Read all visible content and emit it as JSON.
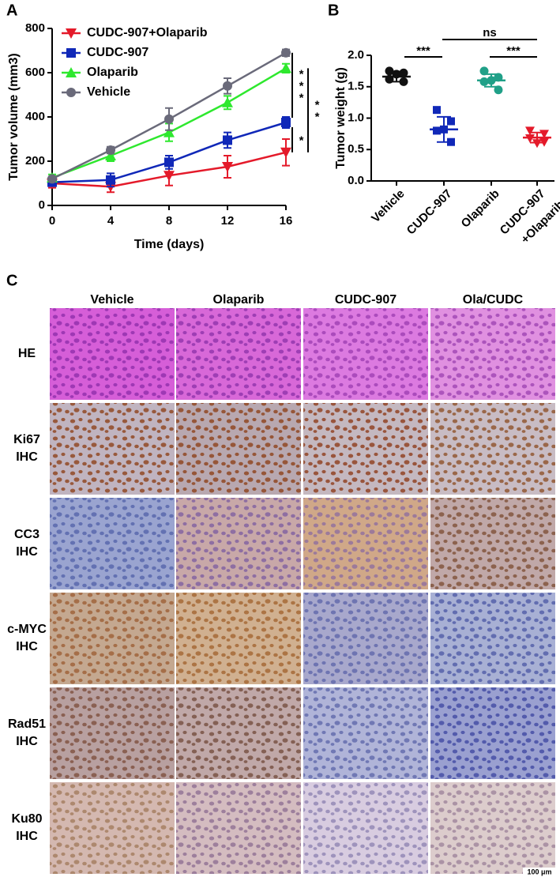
{
  "chart_data": [
    {
      "type": "line",
      "panel_label": "A",
      "xlabel": "Time (days)",
      "ylabel": "Tumor volume (mm3)",
      "x": [
        0,
        4,
        8,
        12,
        16
      ],
      "xlim": [
        0,
        16
      ],
      "xticks": [
        0,
        4,
        8,
        12,
        16
      ],
      "ylim": [
        0,
        800
      ],
      "yticks": [
        0,
        200,
        400,
        600,
        800
      ],
      "legend": "upper left",
      "series": [
        {
          "name": "CUDC-907+Olaparib",
          "color": "#e41a2a",
          "marker": "triangle-down",
          "values": [
            100,
            85,
            135,
            175,
            240
          ],
          "errors": [
            20,
            25,
            45,
            50,
            60
          ]
        },
        {
          "name": "CUDC-907",
          "color": "#1028b8",
          "marker": "square",
          "values": [
            105,
            115,
            195,
            295,
            375
          ],
          "errors": [
            15,
            30,
            30,
            35,
            25
          ]
        },
        {
          "name": "Olaparib",
          "color": "#2ee82e",
          "marker": "triangle",
          "values": [
            125,
            225,
            330,
            465,
            620
          ],
          "errors": [
            15,
            25,
            40,
            30,
            20
          ]
        },
        {
          "name": "Vehicle",
          "color": "#6a6a7a",
          "marker": "circle",
          "values": [
            120,
            250,
            390,
            540,
            690
          ],
          "errors": [
            10,
            15,
            50,
            35,
            15
          ]
        }
      ],
      "annotations": [
        "***",
        "**",
        "*"
      ]
    },
    {
      "type": "dot",
      "panel_label": "B",
      "ylabel": "Tumor weight (g)",
      "categories": [
        [
          "Vehicle"
        ],
        [
          "CUDC-907"
        ],
        [
          "Olaparib"
        ],
        [
          "CUDC-907",
          "+Olaparib"
        ]
      ],
      "colors": [
        "#111111",
        "#1028b8",
        "#20a088",
        "#e41a2a"
      ],
      "points": [
        [
          1.75,
          1.72,
          1.62,
          1.58,
          1.7
        ],
        [
          1.13,
          0.95,
          0.8,
          0.62,
          0.82
        ],
        [
          1.75,
          1.65,
          1.58,
          1.45,
          1.6
        ],
        [
          0.8,
          0.75,
          0.68,
          0.62,
          0.6
        ]
      ],
      "means": [
        1.66,
        0.82,
        1.6,
        0.69
      ],
      "sds": [
        0.08,
        0.2,
        0.1,
        0.08
      ],
      "ylim": [
        0,
        2.0
      ],
      "yticks": [
        {
          "value": 0,
          "label": "0.0"
        },
        {
          "value": 0.5,
          "label": "0.5"
        },
        {
          "value": 1,
          "label": "1.0"
        },
        {
          "value": 1.5,
          "label": "1.5"
        },
        {
          "value": 2,
          "label": "2.0"
        }
      ],
      "annotations": [
        "***",
        "ns",
        "***"
      ]
    }
  ],
  "panel_c": {
    "panel_label": "C",
    "columns": [
      "Vehicle",
      "Olaparib",
      "CUDC-907",
      "Ola/CUDC"
    ],
    "rows": [
      [
        "HE"
      ],
      [
        "Ki67",
        "IHC"
      ],
      [
        "CC3",
        "IHC"
      ],
      [
        "c-MYC",
        "IHC"
      ],
      [
        "Rad51",
        "IHC"
      ],
      [
        "Ku80",
        "IHC"
      ]
    ],
    "scale_bar": "100 μm"
  }
}
